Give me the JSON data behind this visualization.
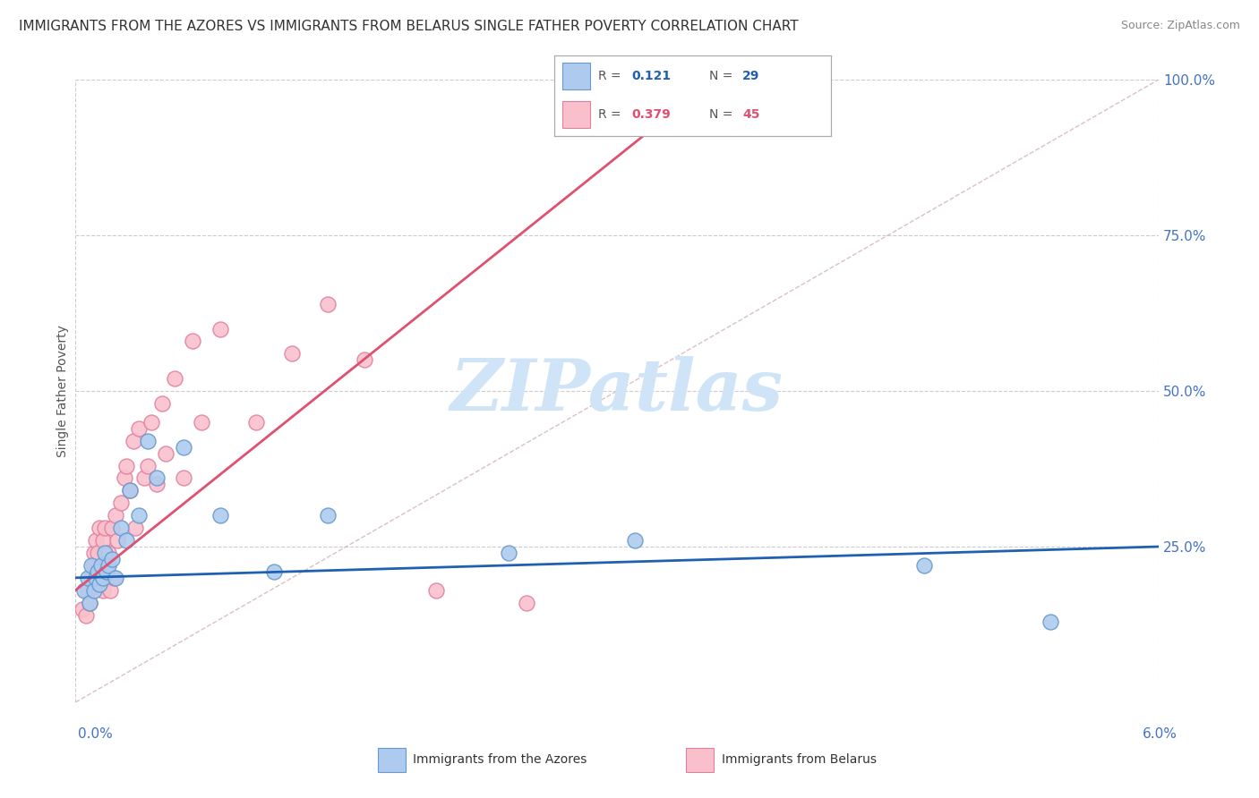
{
  "title": "IMMIGRANTS FROM THE AZORES VS IMMIGRANTS FROM BELARUS SINGLE FATHER POVERTY CORRELATION CHART",
  "source": "Source: ZipAtlas.com",
  "ylabel": "Single Father Poverty",
  "xmin": 0.0,
  "xmax": 6.0,
  "ymin": 0.0,
  "ymax": 100.0,
  "r_azores": 0.121,
  "n_azores": 29,
  "r_belarus": 0.379,
  "n_belarus": 45,
  "color_azores_fill": "#aecbef",
  "color_azores_edge": "#6699cc",
  "color_belarus_fill": "#f9c0cc",
  "color_belarus_edge": "#e080a0",
  "color_azores_line": "#2060b0",
  "color_belarus_line": "#e05070",
  "watermark_color": "#d0e4f7",
  "grid_color": "#cccccc",
  "title_color": "#333333",
  "axis_label_color": "#4472c4",
  "diag_color": "#d0b0b8",
  "azores_x": [
    0.05,
    0.07,
    0.08,
    0.09,
    0.1,
    0.11,
    0.12,
    0.13,
    0.14,
    0.15,
    0.16,
    0.17,
    0.18,
    0.2,
    0.22,
    0.25,
    0.28,
    0.3,
    0.35,
    0.4,
    0.45,
    0.6,
    0.8,
    1.1,
    1.4,
    2.4,
    3.1,
    4.7,
    5.4
  ],
  "azores_y": [
    18,
    20,
    16,
    22,
    18,
    20,
    21,
    19,
    22,
    20,
    24,
    21,
    22,
    23,
    20,
    28,
    26,
    34,
    30,
    42,
    36,
    41,
    30,
    21,
    30,
    24,
    26,
    22,
    13
  ],
  "belarus_x": [
    0.04,
    0.06,
    0.07,
    0.08,
    0.09,
    0.1,
    0.1,
    0.11,
    0.12,
    0.13,
    0.14,
    0.15,
    0.15,
    0.16,
    0.17,
    0.18,
    0.19,
    0.2,
    0.21,
    0.22,
    0.23,
    0.25,
    0.27,
    0.28,
    0.3,
    0.32,
    0.33,
    0.35,
    0.38,
    0.4,
    0.42,
    0.45,
    0.48,
    0.5,
    0.55,
    0.6,
    0.65,
    0.7,
    0.8,
    1.0,
    1.2,
    1.4,
    1.6,
    2.0,
    2.5
  ],
  "belarus_y": [
    15,
    14,
    18,
    16,
    20,
    22,
    24,
    26,
    24,
    28,
    20,
    26,
    18,
    28,
    22,
    24,
    18,
    28,
    20,
    30,
    26,
    32,
    36,
    38,
    34,
    42,
    28,
    44,
    36,
    38,
    45,
    35,
    48,
    40,
    52,
    36,
    58,
    45,
    60,
    45,
    56,
    64,
    55,
    18,
    16
  ],
  "azores_line_x": [
    0.0,
    6.0
  ],
  "azores_line_y": [
    20.0,
    25.0
  ],
  "belarus_line_x": [
    0.0,
    2.5
  ],
  "belarus_line_y": [
    18.0,
    76.0
  ]
}
